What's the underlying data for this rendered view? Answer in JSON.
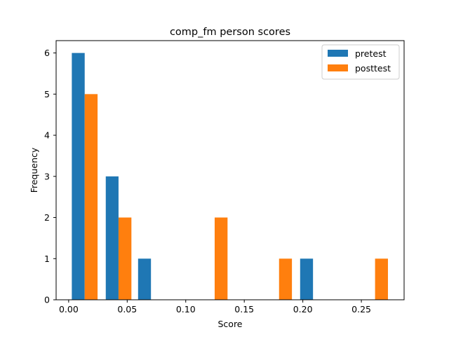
{
  "chart_data": {
    "type": "bar",
    "title": "comp_fm person scores",
    "xlabel": "Score",
    "ylabel": "Frequency",
    "xlim": [
      -0.0107,
      0.2865
    ],
    "ylim": [
      0,
      6.3
    ],
    "x_ticks": [
      0.0,
      0.05,
      0.1,
      0.15,
      0.2,
      0.25
    ],
    "x_tick_labels": [
      "0.00",
      "0.05",
      "0.10",
      "0.15",
      "0.20",
      "0.25"
    ],
    "y_ticks": [
      0,
      1,
      2,
      3,
      4,
      5,
      6
    ],
    "y_tick_labels": [
      "0",
      "1",
      "2",
      "3",
      "4",
      "5",
      "6"
    ],
    "grid": false,
    "legend_position": "top-right",
    "series": [
      {
        "name": "pretest",
        "color": "#1f77b4",
        "bars": [
          {
            "x_start": 0.0027,
            "x_end": 0.0137,
            "value": 6
          },
          {
            "x_start": 0.0317,
            "x_end": 0.0426,
            "value": 3
          },
          {
            "x_start": 0.0593,
            "x_end": 0.0703,
            "value": 1
          },
          {
            "x_start": 0.1977,
            "x_end": 0.2087,
            "value": 1
          }
        ]
      },
      {
        "name": "posttest",
        "color": "#ff7f0e",
        "bars": [
          {
            "x_start": 0.0137,
            "x_end": 0.0247,
            "value": 5
          },
          {
            "x_start": 0.0426,
            "x_end": 0.0536,
            "value": 2
          },
          {
            "x_start": 0.1247,
            "x_end": 0.1357,
            "value": 2
          },
          {
            "x_start": 0.1797,
            "x_end": 0.1907,
            "value": 1
          },
          {
            "x_start": 0.2617,
            "x_end": 0.2727,
            "value": 1
          }
        ]
      }
    ]
  }
}
